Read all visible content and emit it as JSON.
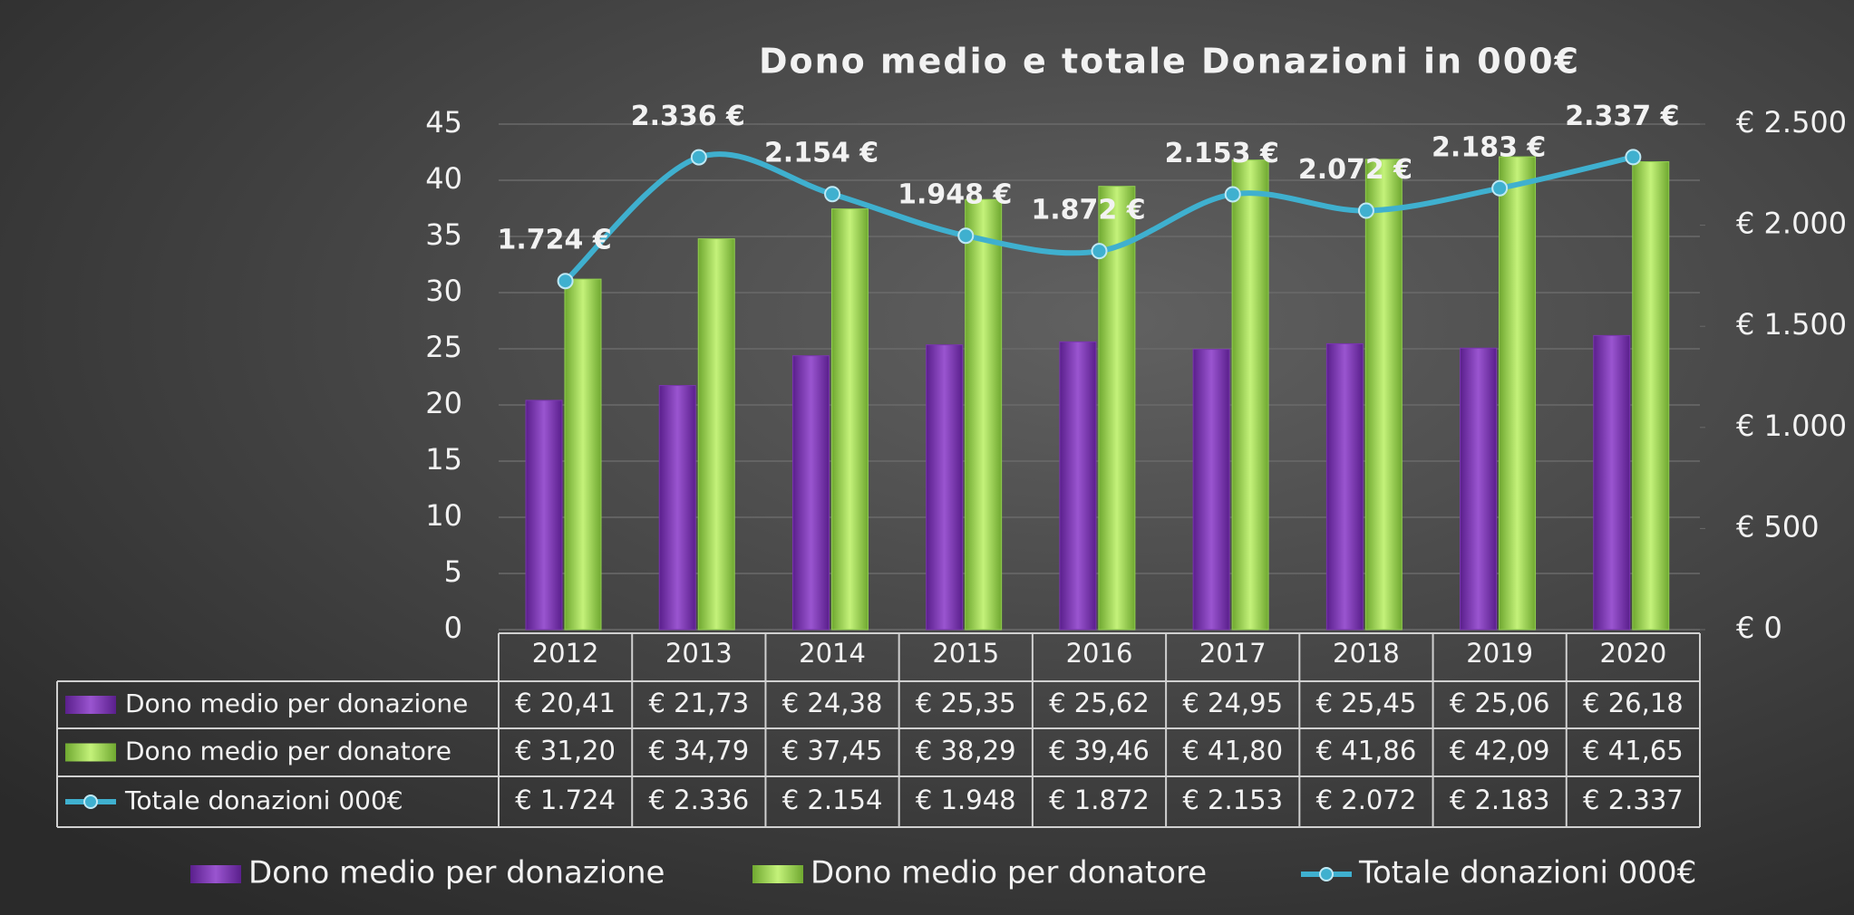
{
  "chart_data": {
    "type": "bar",
    "title": "Dono medio e totale Donazioni in 000€",
    "categories": [
      "2012",
      "2013",
      "2014",
      "2015",
      "2016",
      "2017",
      "2018",
      "2019",
      "2020"
    ],
    "series": [
      {
        "name": "Dono medio per donazione",
        "color": "#7a35b0",
        "type": "bar",
        "values": [
          20.41,
          21.73,
          24.38,
          25.35,
          25.62,
          24.95,
          25.45,
          25.06,
          26.18
        ],
        "value_labels": [
          "€ 20,41",
          "€ 21,73",
          "€ 24,38",
          "€ 25,35",
          "€ 25,62",
          "€ 24,95",
          "€ 25,45",
          "€ 25,06",
          "€ 26,18"
        ]
      },
      {
        "name": "Dono medio per donatore",
        "color": "#92d050",
        "type": "bar",
        "values": [
          31.2,
          34.79,
          37.45,
          38.29,
          39.46,
          41.8,
          41.86,
          42.09,
          41.65
        ],
        "value_labels": [
          "€ 31,20",
          "€ 34,79",
          "€ 37,45",
          "€ 38,29",
          "€ 39,46",
          "€ 41,80",
          "€ 41,86",
          "€ 42,09",
          "€ 41,65"
        ]
      },
      {
        "name": "Totale donazioni 000€",
        "color": "#3fb0cf",
        "type": "line",
        "axis": "y2",
        "values": [
          1724,
          2336,
          2154,
          1948,
          1872,
          2153,
          2072,
          2183,
          2337
        ],
        "value_labels": [
          "€ 1.724",
          "€ 2.336",
          "€ 2.154",
          "€ 1.948",
          "€ 1.872",
          "€ 2.153",
          "€ 2.072",
          "€ 2.183",
          "€ 2.337"
        ],
        "point_labels": [
          "1.724 €",
          "2.336 €",
          "2.154 €",
          "1.948 €",
          "1.872 €",
          "2.153 €",
          "2.072 €",
          "2.183 €",
          "2.337 €"
        ]
      }
    ],
    "ylim": [
      0,
      45
    ],
    "yticks": [
      0,
      5,
      10,
      15,
      20,
      25,
      30,
      35,
      40,
      45
    ],
    "y2lim": [
      0,
      2500
    ],
    "y2ticks": [
      {
        "value": 0,
        "label": "€ 0"
      },
      {
        "value": 500,
        "label": "€ 500"
      },
      {
        "value": 1000,
        "label": "€ 1.000"
      },
      {
        "value": 1500,
        "label": "€ 1.500"
      },
      {
        "value": 2000,
        "label": "€ 2.000"
      },
      {
        "value": 2500,
        "label": "€ 2.500"
      }
    ],
    "grid": true,
    "legend": "bottom"
  }
}
